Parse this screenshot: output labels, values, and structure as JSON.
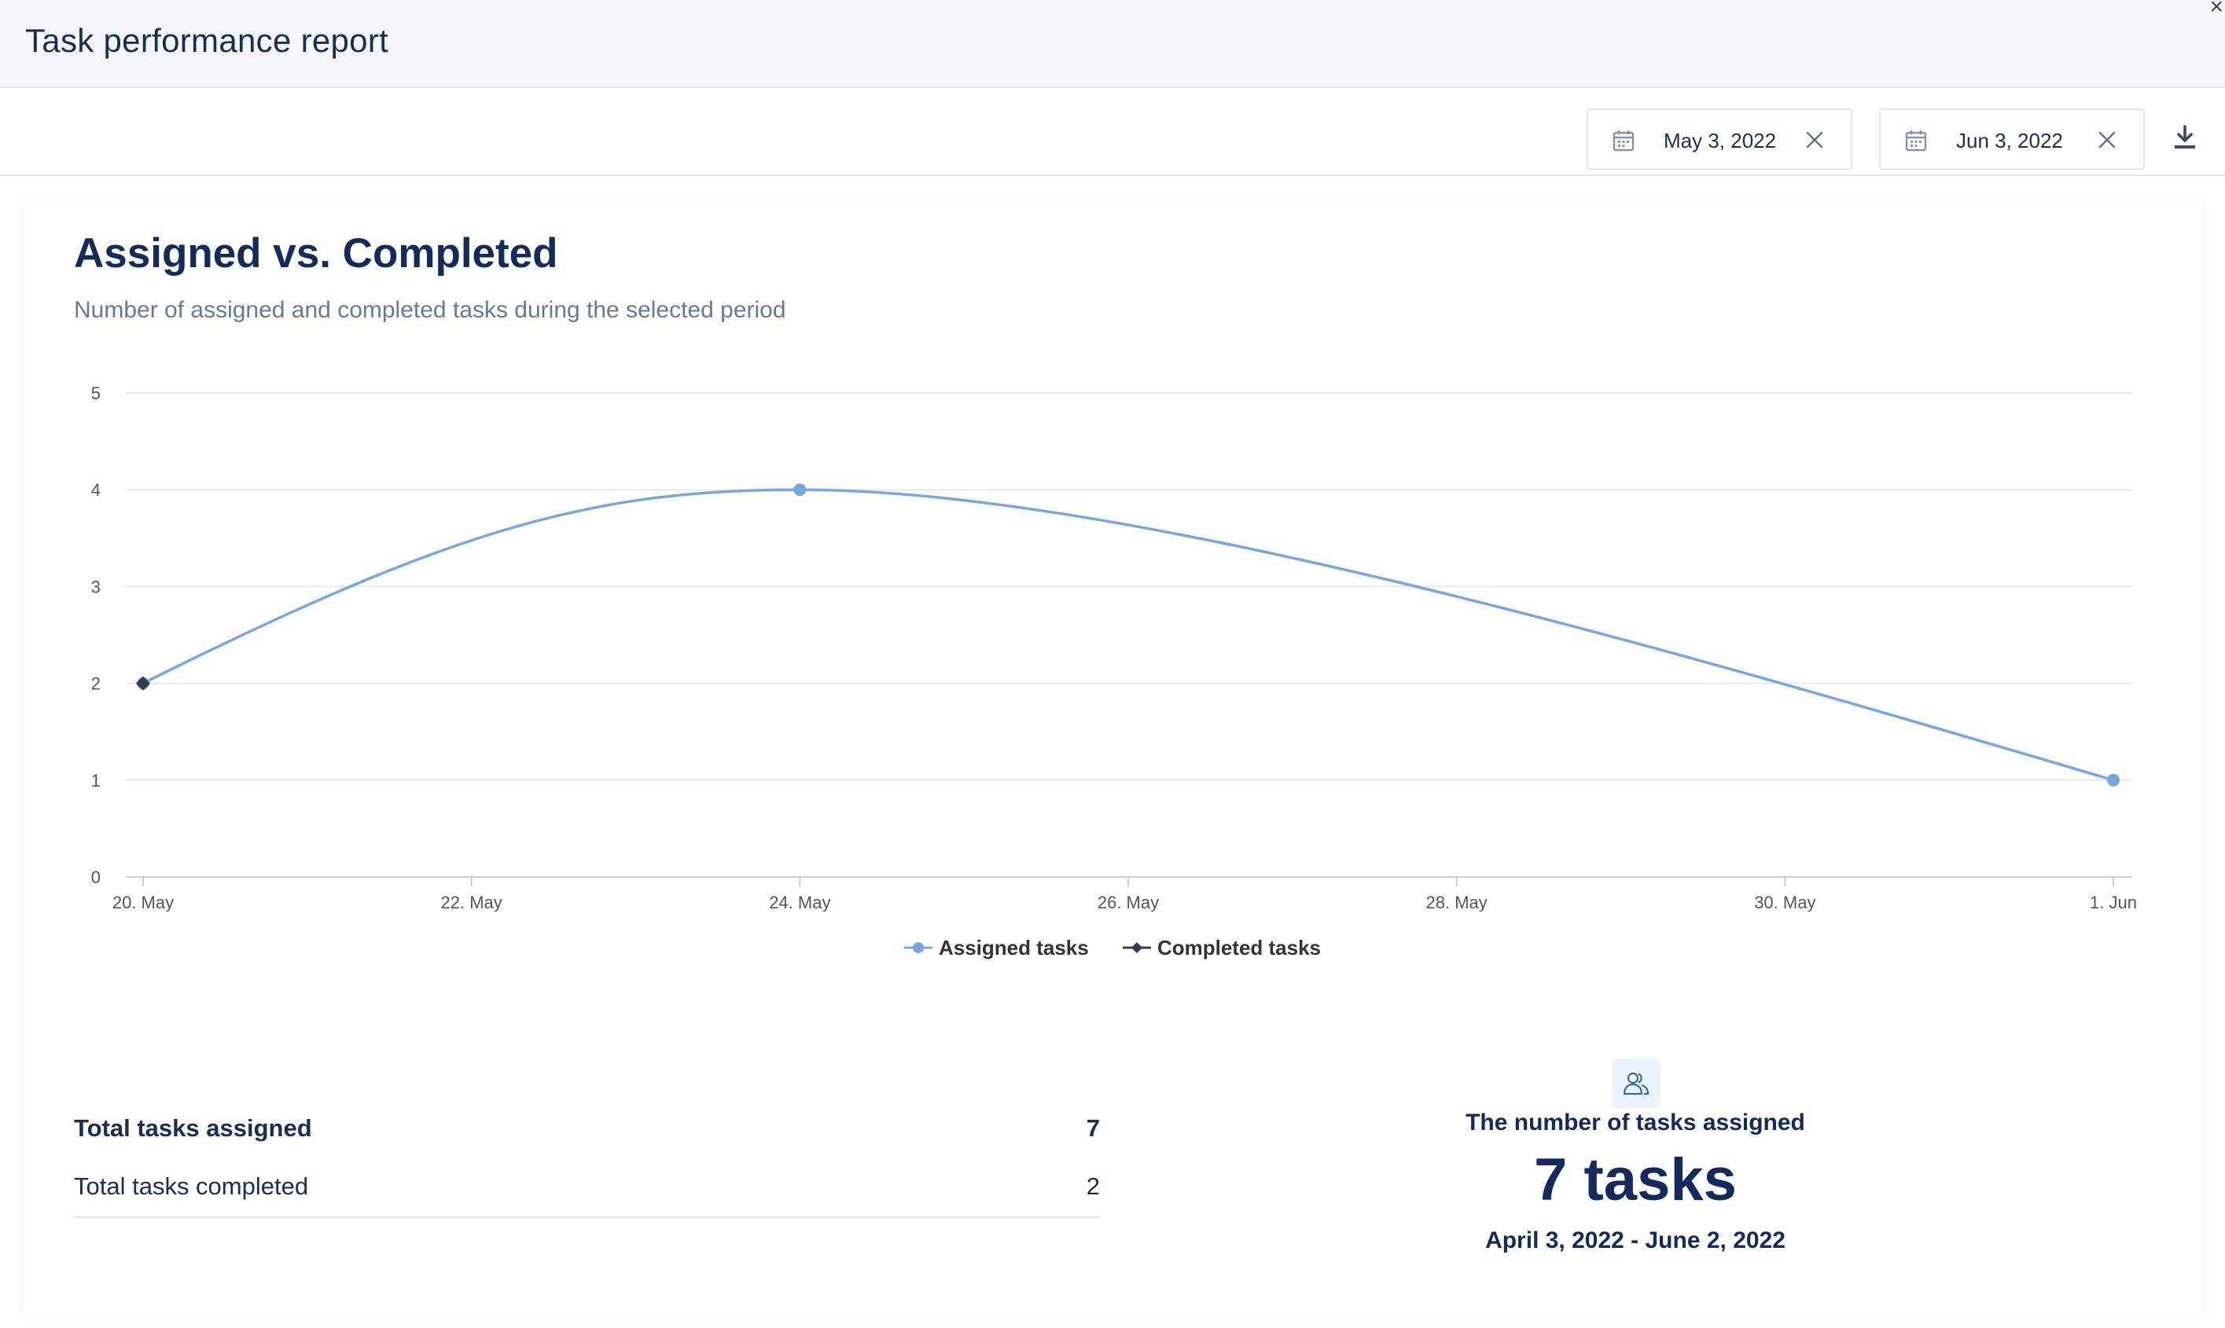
{
  "window": {
    "title": "Task performance report",
    "close_glyph": "×"
  },
  "toolbar": {
    "start_date": "May 3, 2022",
    "end_date": "Jun 3, 2022",
    "icons": {
      "calendar": "calendar-icon",
      "clear": "clear-icon",
      "download": "download-icon"
    }
  },
  "card": {
    "title": "Assigned vs. Completed",
    "subtitle": "Number of assigned and completed tasks during the selected period"
  },
  "chart_data": {
    "type": "line",
    "x": [
      "20. May",
      "22. May",
      "24. May",
      "26. May",
      "28. May",
      "30. May",
      "1. Jun"
    ],
    "x_unit": "days",
    "ylim": [
      0,
      5
    ],
    "yticks": [
      0,
      1,
      2,
      3,
      4,
      5
    ],
    "grid": true,
    "legend_position": "bottom-center",
    "series": [
      {
        "name": "Assigned tasks",
        "color": "#7aa6e0",
        "marker": "circle",
        "points": [
          [
            "20. May",
            2
          ],
          [
            "24. May",
            4
          ],
          [
            "1. Jun",
            1
          ]
        ]
      },
      {
        "name": "Completed tasks",
        "color": "#333d4f",
        "marker": "diamond",
        "points": [
          [
            "20. May",
            2
          ]
        ]
      }
    ]
  },
  "stats": {
    "assigned_label": "Total tasks assigned",
    "assigned_value": "7",
    "completed_label": "Total tasks completed",
    "completed_value": "2"
  },
  "summary": {
    "icon": "users-icon",
    "label": "The number of tasks assigned",
    "value": "7 tasks",
    "range": "April 3, 2022 - June 2, 2022"
  }
}
